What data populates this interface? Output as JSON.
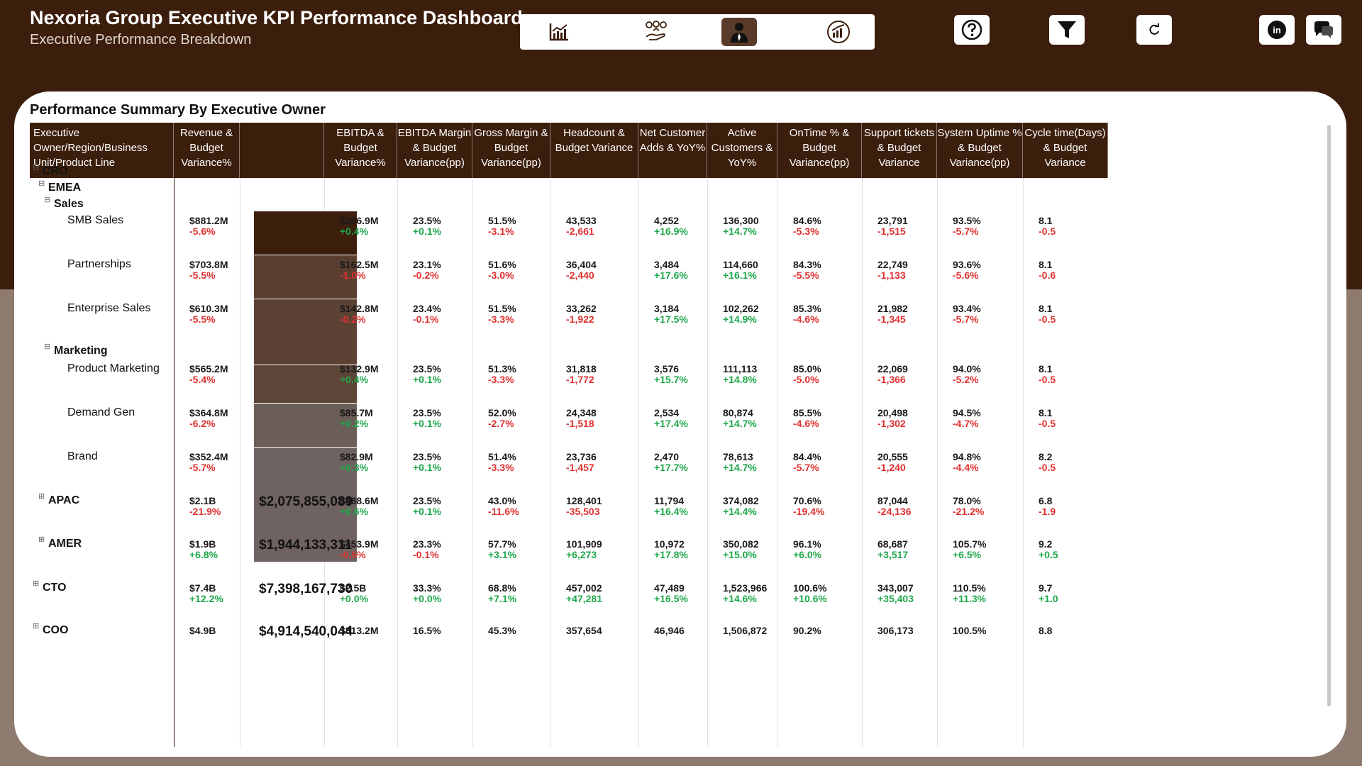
{
  "header": {
    "title": "Nexoria Group Executive KPI Performance Dashboard",
    "subtitle": "Executive Performance Breakdown"
  },
  "nav": [
    {
      "icon": "line-chart-icon",
      "active": false
    },
    {
      "icon": "hand-coins-icon",
      "active": false
    },
    {
      "icon": "executive-person-icon",
      "active": true
    },
    {
      "icon": "gauge-chart-icon",
      "active": false
    }
  ],
  "tools": [
    "help-icon",
    "filter-icon",
    "refresh-icon",
    "linkedin-icon",
    "chat-icon"
  ],
  "colors": {
    "brand": "#3c1e0d",
    "positive": "#1ea84a",
    "negative": "#e03030"
  },
  "table": {
    "title": "Performance Summary By Executive Owner",
    "headers": [
      "Executive Owner/Region/Business Unit/Product Line",
      "Revenue & Budget Variance%",
      "",
      "EBITDA & Budget Variance%",
      "EBITDA Margin & Budget Variance(pp)",
      "Gross Margin & Budget Variance(pp)",
      "Headcount & Budget Variance",
      "Net Customer Adds & YoY%",
      "Active Customers & YoY%",
      "OnTime % & Budget Variance(pp)",
      "Support tickets & Budget Variance",
      "System Uptime % & Budget Variance(pp)",
      "Cycle time(Days) & Budget Variance"
    ],
    "tree_labels": [
      {
        "label": "CRO",
        "level": 0,
        "toggle": "⊟"
      },
      {
        "label": "EMEA",
        "level": 1,
        "toggle": "⊟"
      },
      {
        "label": "Sales",
        "level": 2,
        "toggle": "⊟"
      },
      {
        "label": "Marketing",
        "level": 2,
        "toggle": "⊟"
      }
    ],
    "rows": [
      {
        "label": "SMB Sales",
        "level": 3,
        "bar_color": "#3c1e0d",
        "big": "",
        "cells": [
          [
            "$881.2M",
            "-5.6%"
          ],
          [
            "$206.9M",
            "+0.4%"
          ],
          [
            "23.5%",
            "+0.1%"
          ],
          [
            "51.5%",
            "-3.1%"
          ],
          [
            "43,533",
            "-2,661"
          ],
          [
            "4,252",
            "+16.9%"
          ],
          [
            "136,300",
            "+14.7%"
          ],
          [
            "84.6%",
            "-5.3%"
          ],
          [
            "23,791",
            "-1,515"
          ],
          [
            "93.5%",
            "-5.7%"
          ],
          [
            "8.1",
            "-0.5"
          ]
        ]
      },
      {
        "label": "Partnerships",
        "level": 3,
        "bar_color": "#5a3f30",
        "big": "",
        "cells": [
          [
            "$703.8M",
            "-5.5%"
          ],
          [
            "$162.5M",
            "-1.0%"
          ],
          [
            "23.1%",
            "-0.2%"
          ],
          [
            "51.6%",
            "-3.0%"
          ],
          [
            "36,404",
            "-2,440"
          ],
          [
            "3,484",
            "+17.6%"
          ],
          [
            "114,660",
            "+16.1%"
          ],
          [
            "84.3%",
            "-5.5%"
          ],
          [
            "22,749",
            "-1,133"
          ],
          [
            "93.6%",
            "-5.6%"
          ],
          [
            "8.1",
            "-0.6"
          ]
        ]
      },
      {
        "label": "Enterprise Sales",
        "level": 3,
        "bar_color": "#5c4234",
        "big": "",
        "cells": [
          [
            "$610.3M",
            "-5.5%"
          ],
          [
            "$142.8M",
            "-0.2%"
          ],
          [
            "23.4%",
            "-0.1%"
          ],
          [
            "51.5%",
            "-3.3%"
          ],
          [
            "33,262",
            "-1,922"
          ],
          [
            "3,184",
            "+17.5%"
          ],
          [
            "102,262",
            "+14.9%"
          ],
          [
            "85.3%",
            "-4.6%"
          ],
          [
            "21,982",
            "-1,345"
          ],
          [
            "93.4%",
            "-5.7%"
          ],
          [
            "8.1",
            "-0.5"
          ]
        ]
      },
      {
        "label": "Product Marketing",
        "level": 3,
        "bar_color": "#5d4538",
        "big": "",
        "cells": [
          [
            "$565.2M",
            "-5.4%"
          ],
          [
            "$132.9M",
            "+0.4%"
          ],
          [
            "23.5%",
            "+0.1%"
          ],
          [
            "51.3%",
            "-3.3%"
          ],
          [
            "31,818",
            "-1,772"
          ],
          [
            "3,576",
            "+15.7%"
          ],
          [
            "111,113",
            "+14.8%"
          ],
          [
            "85.0%",
            "-5.0%"
          ],
          [
            "22,069",
            "-1,366"
          ],
          [
            "94.0%",
            "-5.2%"
          ],
          [
            "8.1",
            "-0.5"
          ]
        ]
      },
      {
        "label": "Demand Gen",
        "level": 3,
        "bar_color": "#6b5d57",
        "big": "",
        "cells": [
          [
            "$364.8M",
            "-6.2%"
          ],
          [
            "$85.7M",
            "+0.2%"
          ],
          [
            "23.5%",
            "+0.1%"
          ],
          [
            "52.0%",
            "-2.7%"
          ],
          [
            "24,348",
            "-1,518"
          ],
          [
            "2,534",
            "+17.4%"
          ],
          [
            "80,874",
            "+14.7%"
          ],
          [
            "85.5%",
            "-4.6%"
          ],
          [
            "20,498",
            "-1,302"
          ],
          [
            "94.5%",
            "-4.7%"
          ],
          [
            "8.1",
            "-0.5"
          ]
        ]
      },
      {
        "label": "Brand",
        "level": 3,
        "bar_color": "#6e6360",
        "big": "",
        "cells": [
          [
            "$352.4M",
            "-5.7%"
          ],
          [
            "$82.9M",
            "+0.3%"
          ],
          [
            "23.5%",
            "+0.1%"
          ],
          [
            "51.4%",
            "-3.3%"
          ],
          [
            "23,736",
            "-1,457"
          ],
          [
            "2,470",
            "+17.7%"
          ],
          [
            "78,613",
            "+14.7%"
          ],
          [
            "84.4%",
            "-5.7%"
          ],
          [
            "20,555",
            "-1,240"
          ],
          [
            "94.8%",
            "-4.4%"
          ],
          [
            "8.2",
            "-0.5"
          ]
        ]
      },
      {
        "label": "APAC",
        "level": 1,
        "toggle": "⊞",
        "bar_color": "",
        "big": "$2,075,855,089",
        "cells": [
          [
            "$2.1B",
            "-21.9%"
          ],
          [
            "$488.6M",
            "+0.6%"
          ],
          [
            "23.5%",
            "+0.1%"
          ],
          [
            "43.0%",
            "-11.6%"
          ],
          [
            "128,401",
            "-35,503"
          ],
          [
            "11,794",
            "+16.4%"
          ],
          [
            "374,082",
            "+14.4%"
          ],
          [
            "70.6%",
            "-19.4%"
          ],
          [
            "87,044",
            "-24,136"
          ],
          [
            "78.0%",
            "-21.2%"
          ],
          [
            "6.8",
            "-1.9"
          ]
        ]
      },
      {
        "label": "AMER",
        "level": 1,
        "toggle": "⊞",
        "bar_color": "",
        "big": "$1,944,133,311",
        "cells": [
          [
            "$1.9B",
            "+6.8%"
          ],
          [
            "$453.9M",
            "-0.5%"
          ],
          [
            "23.3%",
            "-0.1%"
          ],
          [
            "57.7%",
            "+3.1%"
          ],
          [
            "101,909",
            "+6,273"
          ],
          [
            "10,972",
            "+17.8%"
          ],
          [
            "350,082",
            "+15.0%"
          ],
          [
            "96.1%",
            "+6.0%"
          ],
          [
            "68,687",
            "+3,517"
          ],
          [
            "105.7%",
            "+6.5%"
          ],
          [
            "9.2",
            "+0.5"
          ]
        ]
      },
      {
        "label": "CTO",
        "level": 0,
        "toggle": "⊞",
        "bar_color": "",
        "big": "$7,398,167,730",
        "cells": [
          [
            "$7.4B",
            "+12.2%"
          ],
          [
            "$2.5B",
            "+0.0%"
          ],
          [
            "33.3%",
            "+0.0%"
          ],
          [
            "68.8%",
            "+7.1%"
          ],
          [
            "457,002",
            "+47,281"
          ],
          [
            "47,489",
            "+16.5%"
          ],
          [
            "1,523,966",
            "+14.6%"
          ],
          [
            "100.6%",
            "+10.6%"
          ],
          [
            "343,007",
            "+35,403"
          ],
          [
            "110.5%",
            "+11.3%"
          ],
          [
            "9.7",
            "+1.0"
          ]
        ]
      },
      {
        "label": "COO",
        "level": 0,
        "toggle": "⊞",
        "bar_color": "",
        "big": "$4,914,540,044",
        "cells": [
          [
            "$4.9B",
            ""
          ],
          [
            "$813.2M",
            ""
          ],
          [
            "16.5%",
            ""
          ],
          [
            "45.3%",
            ""
          ],
          [
            "357,654",
            ""
          ],
          [
            "46,946",
            ""
          ],
          [
            "1,506,872",
            ""
          ],
          [
            "90.2%",
            ""
          ],
          [
            "306,173",
            ""
          ],
          [
            "100.5%",
            ""
          ],
          [
            "8.8",
            ""
          ]
        ]
      }
    ]
  }
}
